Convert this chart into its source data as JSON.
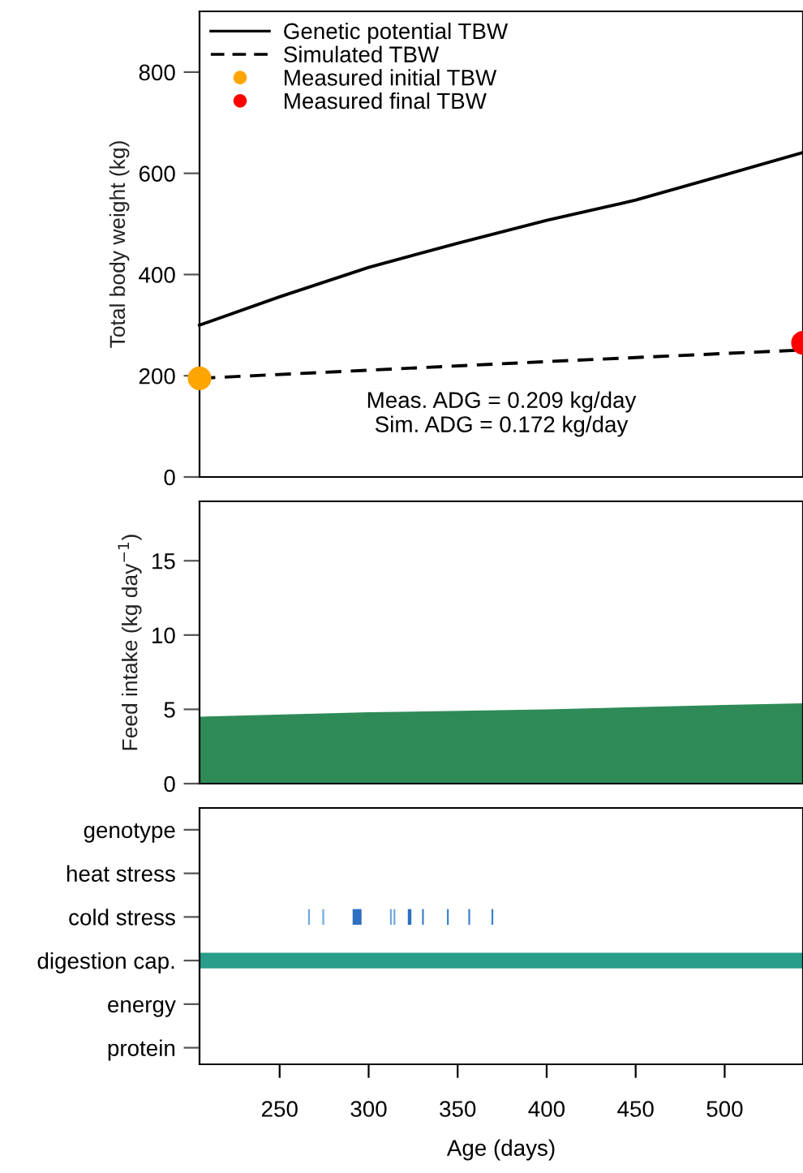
{
  "chart_data": [
    {
      "type": "line",
      "ylabel": "Total body weight (kg)",
      "xlim": [
        205,
        544
      ],
      "ylim": [
        0,
        920
      ],
      "yticks": [
        0,
        200,
        400,
        600,
        800
      ],
      "tick_labels": "y",
      "grid": false,
      "legend": "top left",
      "annotations": [
        "Meas. ADG = 0.209 kg/day\nSim. ADG = 0.172 kg/day"
      ],
      "series": [
        {
          "name": "Genetic potential TBW",
          "color": "#000000",
          "line_style": "solid",
          "x": [
            205,
            250,
            300,
            350,
            400,
            450,
            500,
            544
          ],
          "values": [
            300,
            356,
            414,
            462,
            507,
            547,
            597,
            641
          ]
        },
        {
          "name": "Simulated TBW",
          "color": "#000000",
          "line_style": "dashed",
          "x": [
            205,
            300,
            400,
            500,
            544
          ],
          "values": [
            195,
            211,
            228,
            244,
            251
          ]
        },
        {
          "name": "Measured initial TBW",
          "type": "scatter",
          "marker": "circle",
          "color": "#ffa500",
          "x": [
            205
          ],
          "values": [
            195
          ]
        },
        {
          "name": "Measured final TBW",
          "type": "scatter",
          "marker": "circle",
          "color": "#ff0000",
          "x": [
            544
          ],
          "values": [
            265
          ]
        }
      ]
    },
    {
      "type": "area",
      "ylabel": "Feed intake (kg day$^{−1}$)",
      "xlim": [
        205,
        544
      ],
      "ylim": [
        0,
        19
      ],
      "yticks": [
        0,
        5,
        10,
        15
      ],
      "tick_labels": "y",
      "grid": false,
      "series": [
        {
          "color": "#2e8b57",
          "x": [
            205,
            300,
            400,
            500,
            544
          ],
          "values": [
            4.5,
            4.8,
            5.0,
            5.3,
            5.4
          ]
        }
      ]
    },
    {
      "type": "bar",
      "orientation": "horizontal",
      "xlabel": "Age (days)",
      "xlim": [
        205,
        544
      ],
      "xticks": [
        250,
        300,
        350,
        400,
        450,
        500
      ],
      "grid": false,
      "categories": [
        "genotype",
        "heat stress",
        "cold stress",
        "digestion cap.",
        "energy",
        "protein"
      ],
      "series": [
        {
          "color": "#2a9d8a",
          "values": [
            null,
            null,
            null,
            339,
            null,
            null
          ],
          "base": [
            null,
            null,
            null,
            205,
            null,
            null
          ]
        },
        {
          "color": "#6fa8dc",
          "values": [
            null,
            null,
            1,
            null,
            null,
            null
          ],
          "base": [
            null,
            null,
            266,
            null,
            null,
            null
          ]
        },
        {
          "color": "#6fa8dc",
          "values": [
            null,
            null,
            1,
            null,
            null,
            null
          ],
          "base": [
            null,
            null,
            274,
            null,
            null,
            null
          ]
        },
        {
          "color": "#2e6fc0",
          "values": [
            null,
            null,
            5,
            null,
            null,
            null
          ],
          "base": [
            null,
            null,
            291,
            null,
            null,
            null
          ]
        },
        {
          "color": "#6fa8dc",
          "values": [
            null,
            null,
            1,
            null,
            null,
            null
          ],
          "base": [
            null,
            null,
            312,
            null,
            null,
            null
          ]
        },
        {
          "color": "#6fa8dc",
          "values": [
            null,
            null,
            1,
            null,
            null,
            null
          ],
          "base": [
            null,
            null,
            314,
            null,
            null,
            null
          ]
        },
        {
          "color": "#2e6fc0",
          "values": [
            null,
            null,
            2,
            null,
            null,
            null
          ],
          "base": [
            null,
            null,
            322,
            null,
            null,
            null
          ]
        },
        {
          "color": "#3a7fd0",
          "values": [
            null,
            null,
            1,
            null,
            null,
            null
          ],
          "base": [
            null,
            null,
            330,
            null,
            null,
            null
          ]
        },
        {
          "color": "#3a7fd0",
          "values": [
            null,
            null,
            1,
            null,
            null,
            null
          ],
          "base": [
            null,
            null,
            344,
            null,
            null,
            null
          ]
        },
        {
          "color": "#3a7fd0",
          "values": [
            null,
            null,
            1,
            null,
            null,
            null
          ],
          "base": [
            null,
            null,
            356,
            null,
            null,
            null
          ]
        },
        {
          "color": "#3a7fd0",
          "values": [
            null,
            null,
            1,
            null,
            null,
            null
          ],
          "base": [
            null,
            null,
            369,
            null,
            null,
            null
          ]
        }
      ]
    }
  ]
}
